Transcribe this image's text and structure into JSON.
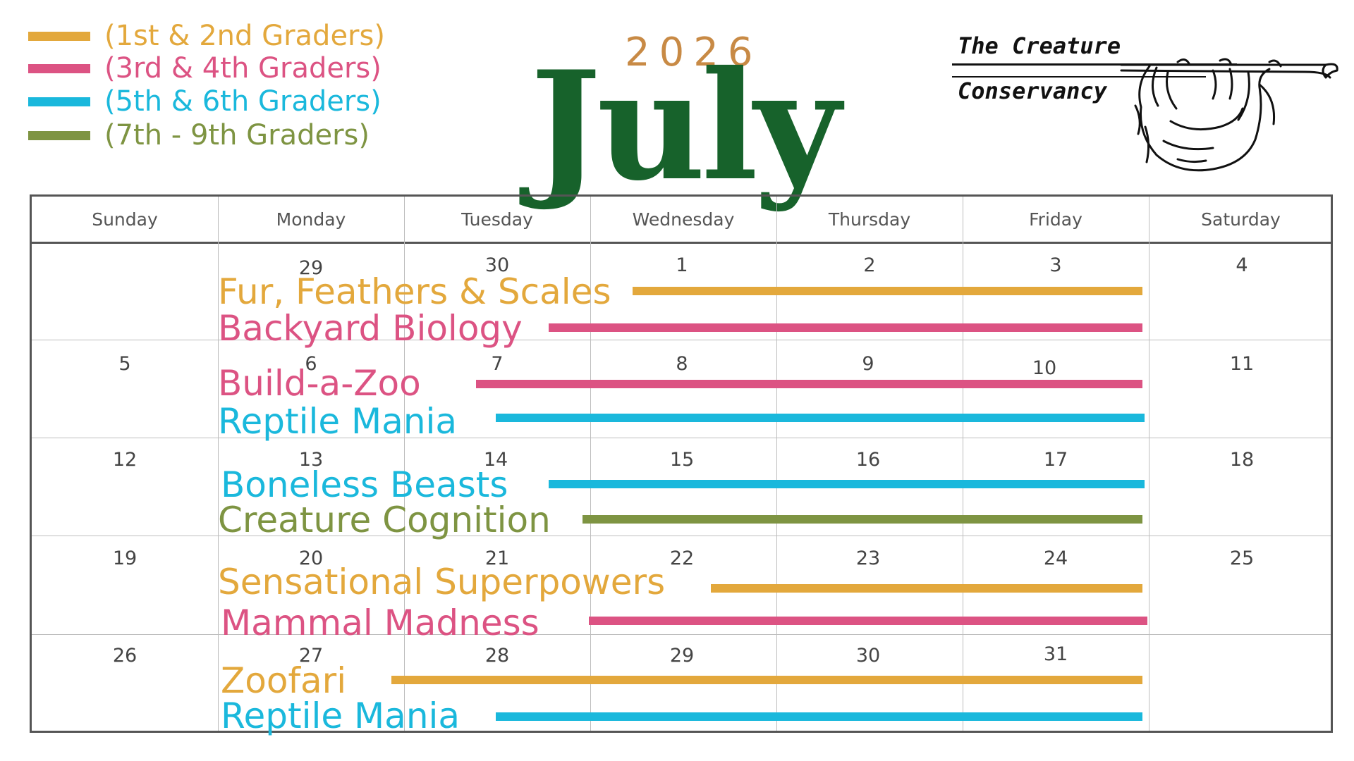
{
  "legend": [
    {
      "label": "(1st & 2nd Graders)",
      "color": "#e3a83c"
    },
    {
      "label": "(3rd & 4th Graders)",
      "color": "#dc5383"
    },
    {
      "label": "(5th & 6th Graders)",
      "color": "#1ab8dc"
    },
    {
      "label": "(7th - 9th Graders)",
      "color": "#7e9442"
    }
  ],
  "title": {
    "year": "2026",
    "month": "July"
  },
  "logo": {
    "line1": "The Creature",
    "line2": "Conservancy",
    "icon": "sloth-on-branch-icon"
  },
  "calendar": {
    "days": [
      "Sunday",
      "Monday",
      "Tuesday",
      "Wednesday",
      "Thursday",
      "Friday",
      "Saturday"
    ],
    "weeks": [
      [
        "",
        "29",
        "30",
        "1",
        "2",
        "3",
        "4"
      ],
      [
        "5",
        "6",
        "7",
        "8",
        "9",
        "10",
        "11"
      ],
      [
        "12",
        "13",
        "14",
        "15",
        "16",
        "17",
        "18"
      ],
      [
        "19",
        "20",
        "21",
        "22",
        "23",
        "24",
        "25"
      ],
      [
        "26",
        "27",
        "28",
        "29",
        "30",
        "31",
        ""
      ]
    ]
  },
  "events": [
    {
      "name": "Fur, Feathers & Scales",
      "week": 1,
      "color": "#e3a83c"
    },
    {
      "name": "Backyard Biology",
      "week": 1,
      "color": "#dc5383"
    },
    {
      "name": "Build-a-Zoo",
      "week": 2,
      "color": "#dc5383"
    },
    {
      "name": "Reptile Mania",
      "week": 2,
      "color": "#1ab8dc"
    },
    {
      "name": "Boneless Beasts",
      "week": 3,
      "color": "#1ab8dc"
    },
    {
      "name": "Creature Cognition",
      "week": 3,
      "color": "#7e9442"
    },
    {
      "name": "Sensational Superpowers",
      "week": 4,
      "color": "#e3a83c"
    },
    {
      "name": "Mammal Madness",
      "week": 4,
      "color": "#dc5383"
    },
    {
      "name": "Zoofari",
      "week": 5,
      "color": "#e3a83c"
    },
    {
      "name": "Reptile Mania",
      "week": 5,
      "color": "#1ab8dc"
    }
  ]
}
